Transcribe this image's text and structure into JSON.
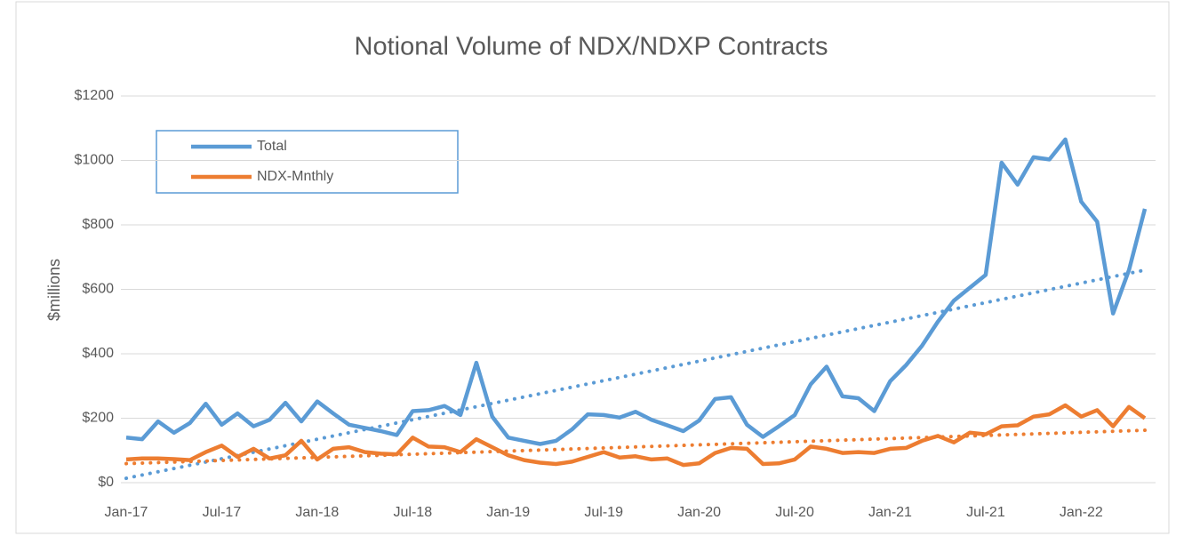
{
  "chart_data": {
    "type": "line",
    "title": "Notional Volume of NDX/NDXP Contracts",
    "y_label": "$millions",
    "categories": [
      "Jan-17",
      null,
      null,
      null,
      null,
      null,
      "Jul-17",
      null,
      null,
      null,
      null,
      null,
      "Jan-18",
      null,
      null,
      null,
      null,
      null,
      "Jul-18",
      null,
      null,
      null,
      null,
      null,
      "Jan-19",
      null,
      null,
      null,
      null,
      null,
      "Jul-19",
      null,
      null,
      null,
      null,
      null,
      "Jan-20",
      null,
      null,
      null,
      null,
      null,
      "Jul-20",
      null,
      null,
      null,
      null,
      null,
      "Jan-21",
      null,
      null,
      null,
      null,
      null,
      "Jul-21",
      null,
      null,
      null,
      null,
      null,
      "Jan-22",
      null,
      null,
      null,
      null
    ],
    "series": [
      {
        "name": "Total",
        "color": "#5b9bd5",
        "values": [
          140,
          135,
          190,
          155,
          185,
          245,
          180,
          215,
          175,
          195,
          248,
          190,
          252,
          215,
          180,
          170,
          160,
          148,
          222,
          225,
          238,
          210,
          372,
          205,
          140,
          130,
          120,
          130,
          165,
          212,
          210,
          202,
          220,
          195,
          178,
          160,
          193,
          260,
          265,
          180,
          142,
          175,
          210,
          305,
          360,
          268,
          262,
          222,
          315,
          365,
          425,
          500,
          565,
          605,
          645,
          993,
          925,
          1010,
          1003,
          1065,
          872,
          810,
          525,
          660,
          850
        ]
      },
      {
        "name": "NDX-Mnthly",
        "color": "#ed7d31",
        "values": [
          72,
          75,
          75,
          73,
          70,
          95,
          115,
          80,
          105,
          75,
          85,
          130,
          72,
          105,
          110,
          95,
          90,
          88,
          140,
          112,
          110,
          95,
          135,
          110,
          85,
          70,
          62,
          58,
          65,
          80,
          95,
          78,
          82,
          72,
          75,
          55,
          60,
          92,
          108,
          105,
          58,
          60,
          72,
          112,
          105,
          92,
          95,
          92,
          105,
          108,
          130,
          145,
          125,
          155,
          150,
          175,
          178,
          205,
          212,
          240,
          205,
          225,
          175,
          235,
          200
        ]
      }
    ],
    "ylim": [
      0,
      1200
    ],
    "yticks": [
      {
        "value": 0,
        "label": "$0"
      },
      {
        "value": 200,
        "label": "$200"
      },
      {
        "value": 400,
        "label": "$400"
      },
      {
        "value": 600,
        "label": "$600"
      },
      {
        "value": 800,
        "label": "$800"
      },
      {
        "value": 1000,
        "label": "$1000"
      },
      {
        "value": 1200,
        "label": "$1200"
      }
    ],
    "grid": true,
    "trendline": true,
    "legend": "upper-left"
  }
}
